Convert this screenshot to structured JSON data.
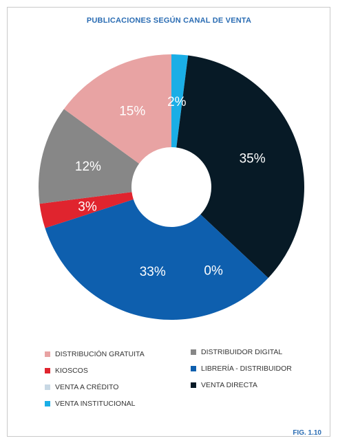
{
  "chart_data": {
    "type": "pie",
    "variant": "donut",
    "title": "PUBLICACIONES SEGÚN CANAL DE VENTA",
    "legend_position": "bottom",
    "slices": [
      {
        "name": "VENTA INSTITUCIONAL",
        "value": 2,
        "label": "2%",
        "color": "#1aaee6"
      },
      {
        "name": "VENTA DIRECTA",
        "value": 35,
        "label": "35%",
        "color": "#071a26"
      },
      {
        "name": "VENTA A CRÉDITO",
        "value": 0,
        "label": "0%",
        "color": "#c8d8e4"
      },
      {
        "name": "LIBRERÍA - DISTRIBUIDOR",
        "value": 33,
        "label": "33%",
        "color": "#0e5fae"
      },
      {
        "name": "KIOSCOS",
        "value": 3,
        "label": "3%",
        "color": "#e0242e"
      },
      {
        "name": "DISTRIBUIDOR DIGITAL",
        "value": 12,
        "label": "12%",
        "color": "#878787"
      },
      {
        "name": "DISTRIBUCIÓN GRATUITA",
        "value": 15,
        "label": "15%",
        "color": "#e8a3a3"
      }
    ],
    "legend": [
      {
        "name": "DISTRIBUCIÓN GRATUITA",
        "color": "#e8a3a3"
      },
      {
        "name": "DISTRIBUIDOR DIGITAL",
        "color": "#878787"
      },
      {
        "name": "KIOSCOS",
        "color": "#e0242e"
      },
      {
        "name": "LIBRERÍA - DISTRIBUIDOR",
        "color": "#0e5fae"
      },
      {
        "name": "VENTA A CRÉDITO",
        "color": "#c8d8e4"
      },
      {
        "name": "VENTA DIRECTA",
        "color": "#071a26"
      },
      {
        "name": "VENTA INSTITUCIONAL",
        "color": "#1aaee6"
      }
    ]
  },
  "figure_label": "FIG. 1.10"
}
